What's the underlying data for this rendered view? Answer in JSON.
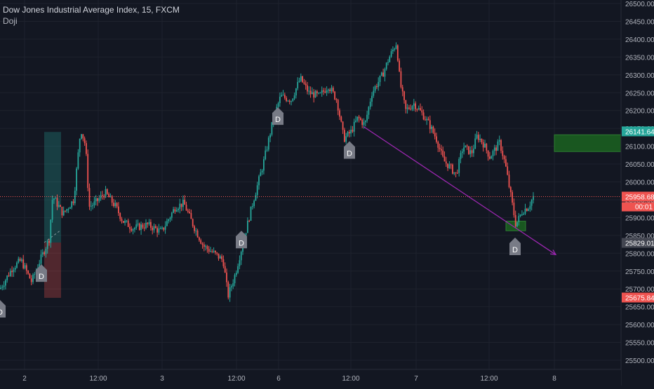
{
  "header": {
    "title": "Dow Jones Industrial Average Index, 15, FXCM",
    "indicator": "Doji"
  },
  "colors": {
    "background": "#131722",
    "up": "#26a69a",
    "down": "#ef5350",
    "grid": "#1e222d",
    "axis_text": "#b2b5be",
    "trendline": "#9c27b0",
    "price_line": "#ef5350",
    "marker": "#787b86"
  },
  "axes": {
    "y_ticks": [
      "26500.00",
      "26450.00",
      "26400.00",
      "26350.00",
      "26300.00",
      "26250.00",
      "26200.00",
      "26150.00",
      "26100.00",
      "26050.00",
      "26000.00",
      "25950.00",
      "25900.00",
      "25850.00",
      "25800.00",
      "25750.00",
      "25700.00",
      "25650.00",
      "25600.00",
      "25550.00",
      "25500.00"
    ],
    "x_ticks": [
      "2",
      "12:00",
      "3",
      "12:00",
      "6",
      "12:00",
      "7",
      "12:00",
      "8"
    ]
  },
  "price_labels": {
    "level_1": "26141.64",
    "current_price": "25958.68",
    "countdown": "00:01",
    "level_2": "25829.01",
    "level_3": "25675.84"
  },
  "marker_label": "D",
  "chart_data": {
    "type": "candlestick",
    "title": "Dow Jones Industrial Average Index, 15, FXCM",
    "ylim": [
      25490,
      26505
    ],
    "grid": true,
    "x_tick_labels": [
      "2",
      "12:00",
      "3",
      "12:00",
      "6",
      "12:00",
      "7",
      "12:00",
      "8"
    ],
    "price_path": [
      [
        0,
        25700
      ],
      [
        18,
        25760
      ],
      [
        30,
        25780
      ],
      [
        45,
        25720
      ],
      [
        55,
        25770
      ],
      [
        70,
        25840
      ],
      [
        75,
        25960
      ],
      [
        90,
        25910
      ],
      [
        105,
        25950
      ],
      [
        115,
        26150
      ],
      [
        122,
        26100
      ],
      [
        127,
        25930
      ],
      [
        135,
        25940
      ],
      [
        150,
        25970
      ],
      [
        165,
        25930
      ],
      [
        175,
        25890
      ],
      [
        190,
        25870
      ],
      [
        210,
        25880
      ],
      [
        230,
        25860
      ],
      [
        250,
        25930
      ],
      [
        262,
        25940
      ],
      [
        275,
        25880
      ],
      [
        290,
        25820
      ],
      [
        305,
        25800
      ],
      [
        318,
        25780
      ],
      [
        325,
        25680
      ],
      [
        335,
        25740
      ],
      [
        345,
        25820
      ],
      [
        360,
        25940
      ],
      [
        375,
        26050
      ],
      [
        390,
        26180
      ],
      [
        400,
        26240
      ],
      [
        415,
        26230
      ],
      [
        428,
        26290
      ],
      [
        440,
        26250
      ],
      [
        455,
        26240
      ],
      [
        468,
        26270
      ],
      [
        480,
        26230
      ],
      [
        490,
        26120
      ],
      [
        500,
        26140
      ],
      [
        510,
        26180
      ],
      [
        520,
        26160
      ],
      [
        530,
        26250
      ],
      [
        545,
        26300
      ],
      [
        555,
        26350
      ],
      [
        565,
        26390
      ],
      [
        570,
        26280
      ],
      [
        578,
        26200
      ],
      [
        590,
        26220
      ],
      [
        602,
        26190
      ],
      [
        612,
        26160
      ],
      [
        622,
        26120
      ],
      [
        632,
        26060
      ],
      [
        642,
        26040
      ],
      [
        650,
        26020
      ],
      [
        660,
        26100
      ],
      [
        672,
        26080
      ],
      [
        680,
        26130
      ],
      [
        688,
        26110
      ],
      [
        698,
        26070
      ],
      [
        712,
        26110
      ],
      [
        720,
        26050
      ],
      [
        728,
        25960
      ],
      [
        735,
        25880
      ],
      [
        745,
        25920
      ],
      [
        753,
        25930
      ],
      [
        760,
        25958.68
      ]
    ],
    "doji_markers": [
      {
        "x": 0,
        "price": 25663
      },
      {
        "x": 59,
        "price": 25763
      },
      {
        "x": 344,
        "price": 25857
      },
      {
        "x": 396,
        "price": 26203
      },
      {
        "x": 498,
        "price": 26108
      },
      {
        "x": 734,
        "price": 25838
      }
    ],
    "annotations": {
      "price_line": 25958.68,
      "trendline": {
        "from": {
          "x": 518,
          "price": 26155
        },
        "to": {
          "x": 792,
          "price": 25796
        }
      },
      "position_tool": {
        "x_start": 63,
        "x_end": 87,
        "entry": 25830,
        "target": 26140,
        "stop": 25675
      },
      "zone_right": {
        "x_start": 790,
        "x_end": 886,
        "top": 26132,
        "bottom": 26085
      },
      "zone_low": {
        "x_start": 721,
        "x_end": 749,
        "top": 25890,
        "bottom": 25863
      }
    }
  }
}
